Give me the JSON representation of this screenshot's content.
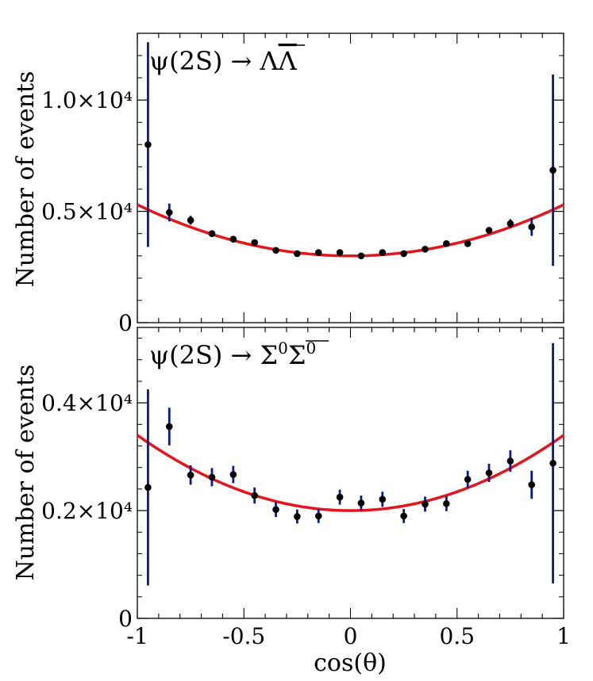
{
  "chart_data": [
    {
      "type": "scatter",
      "panel": "top",
      "title": "ψ(2S) → ΛΛ̄",
      "title_main": "ψ(2S) → Λ",
      "title_bar": "Λ",
      "ylabel": "Number of events",
      "xlabel": "",
      "xlim": [
        -1,
        1
      ],
      "ylim": [
        0,
        13000
      ],
      "yticks": [
        {
          "value": 0,
          "label": "0"
        },
        {
          "value": 5000,
          "label": "0.5×10⁴"
        },
        {
          "value": 10000,
          "label": "1.0×10⁴"
        }
      ],
      "xticks": [
        -1,
        -0.5,
        0,
        0.5,
        1
      ],
      "point_color": "#000000",
      "error_color": "#0a1a8c",
      "fit_color": "#e8141c",
      "fit": {
        "type": "parabola",
        "a": 3000,
        "b": 2300
      },
      "points": [
        {
          "x": -0.95,
          "y": 8000,
          "err": 4600
        },
        {
          "x": -0.85,
          "y": 4950,
          "err": 400
        },
        {
          "x": -0.75,
          "y": 4600,
          "err": 200
        },
        {
          "x": -0.65,
          "y": 4000,
          "err": 150
        },
        {
          "x": -0.55,
          "y": 3750,
          "err": 130
        },
        {
          "x": -0.45,
          "y": 3600,
          "err": 120
        },
        {
          "x": -0.35,
          "y": 3250,
          "err": 100
        },
        {
          "x": -0.25,
          "y": 3100,
          "err": 100
        },
        {
          "x": -0.15,
          "y": 3150,
          "err": 100
        },
        {
          "x": -0.05,
          "y": 3150,
          "err": 100
        },
        {
          "x": 0.05,
          "y": 3000,
          "err": 100
        },
        {
          "x": 0.15,
          "y": 3150,
          "err": 100
        },
        {
          "x": 0.25,
          "y": 3100,
          "err": 100
        },
        {
          "x": 0.35,
          "y": 3300,
          "err": 110
        },
        {
          "x": 0.45,
          "y": 3550,
          "err": 120
        },
        {
          "x": 0.55,
          "y": 3550,
          "err": 130
        },
        {
          "x": 0.65,
          "y": 4150,
          "err": 150
        },
        {
          "x": 0.75,
          "y": 4450,
          "err": 200
        },
        {
          "x": 0.85,
          "y": 4300,
          "err": 400
        },
        {
          "x": 0.95,
          "y": 6850,
          "err": 4300
        }
      ]
    },
    {
      "type": "scatter",
      "panel": "bottom",
      "title": "ψ(2S) → Σ⁰Σ̄⁰",
      "title_main": "ψ(2S) → Σ",
      "title_sup": "0",
      "title_bar": "Σ",
      "title_bar_sup": "0",
      "ylabel": "Number of events",
      "xlabel": "cos(θ)",
      "xlim": [
        -1,
        1
      ],
      "ylim": [
        0,
        5400
      ],
      "yticks": [
        {
          "value": 0,
          "label": "0"
        },
        {
          "value": 2000,
          "label": "0.2×10⁴"
        },
        {
          "value": 4000,
          "label": "0.4×10⁴"
        }
      ],
      "xticks": [
        -1,
        -0.5,
        0,
        0.5,
        1
      ],
      "xtick_labels": [
        "-1",
        "-0.5",
        "0",
        "0.5",
        "1"
      ],
      "point_color": "#000000",
      "error_color": "#0a1a8c",
      "fit_color": "#e8141c",
      "fit": {
        "type": "parabola",
        "a": 2000,
        "b": 1400
      },
      "points": [
        {
          "x": -0.95,
          "y": 2430,
          "err": 1820
        },
        {
          "x": -0.85,
          "y": 3560,
          "err": 350
        },
        {
          "x": -0.75,
          "y": 2660,
          "err": 180
        },
        {
          "x": -0.65,
          "y": 2620,
          "err": 170
        },
        {
          "x": -0.55,
          "y": 2670,
          "err": 160
        },
        {
          "x": -0.45,
          "y": 2280,
          "err": 150
        },
        {
          "x": -0.35,
          "y": 2020,
          "err": 140
        },
        {
          "x": -0.25,
          "y": 1890,
          "err": 130
        },
        {
          "x": -0.15,
          "y": 1900,
          "err": 130
        },
        {
          "x": -0.05,
          "y": 2250,
          "err": 140
        },
        {
          "x": 0.05,
          "y": 2140,
          "err": 140
        },
        {
          "x": 0.15,
          "y": 2210,
          "err": 140
        },
        {
          "x": 0.25,
          "y": 1900,
          "err": 130
        },
        {
          "x": 0.35,
          "y": 2120,
          "err": 140
        },
        {
          "x": 0.45,
          "y": 2130,
          "err": 140
        },
        {
          "x": 0.55,
          "y": 2580,
          "err": 160
        },
        {
          "x": 0.65,
          "y": 2700,
          "err": 170
        },
        {
          "x": 0.75,
          "y": 2920,
          "err": 200
        },
        {
          "x": 0.85,
          "y": 2480,
          "err": 260
        },
        {
          "x": 0.95,
          "y": 2880,
          "err": 2230
        }
      ]
    }
  ]
}
